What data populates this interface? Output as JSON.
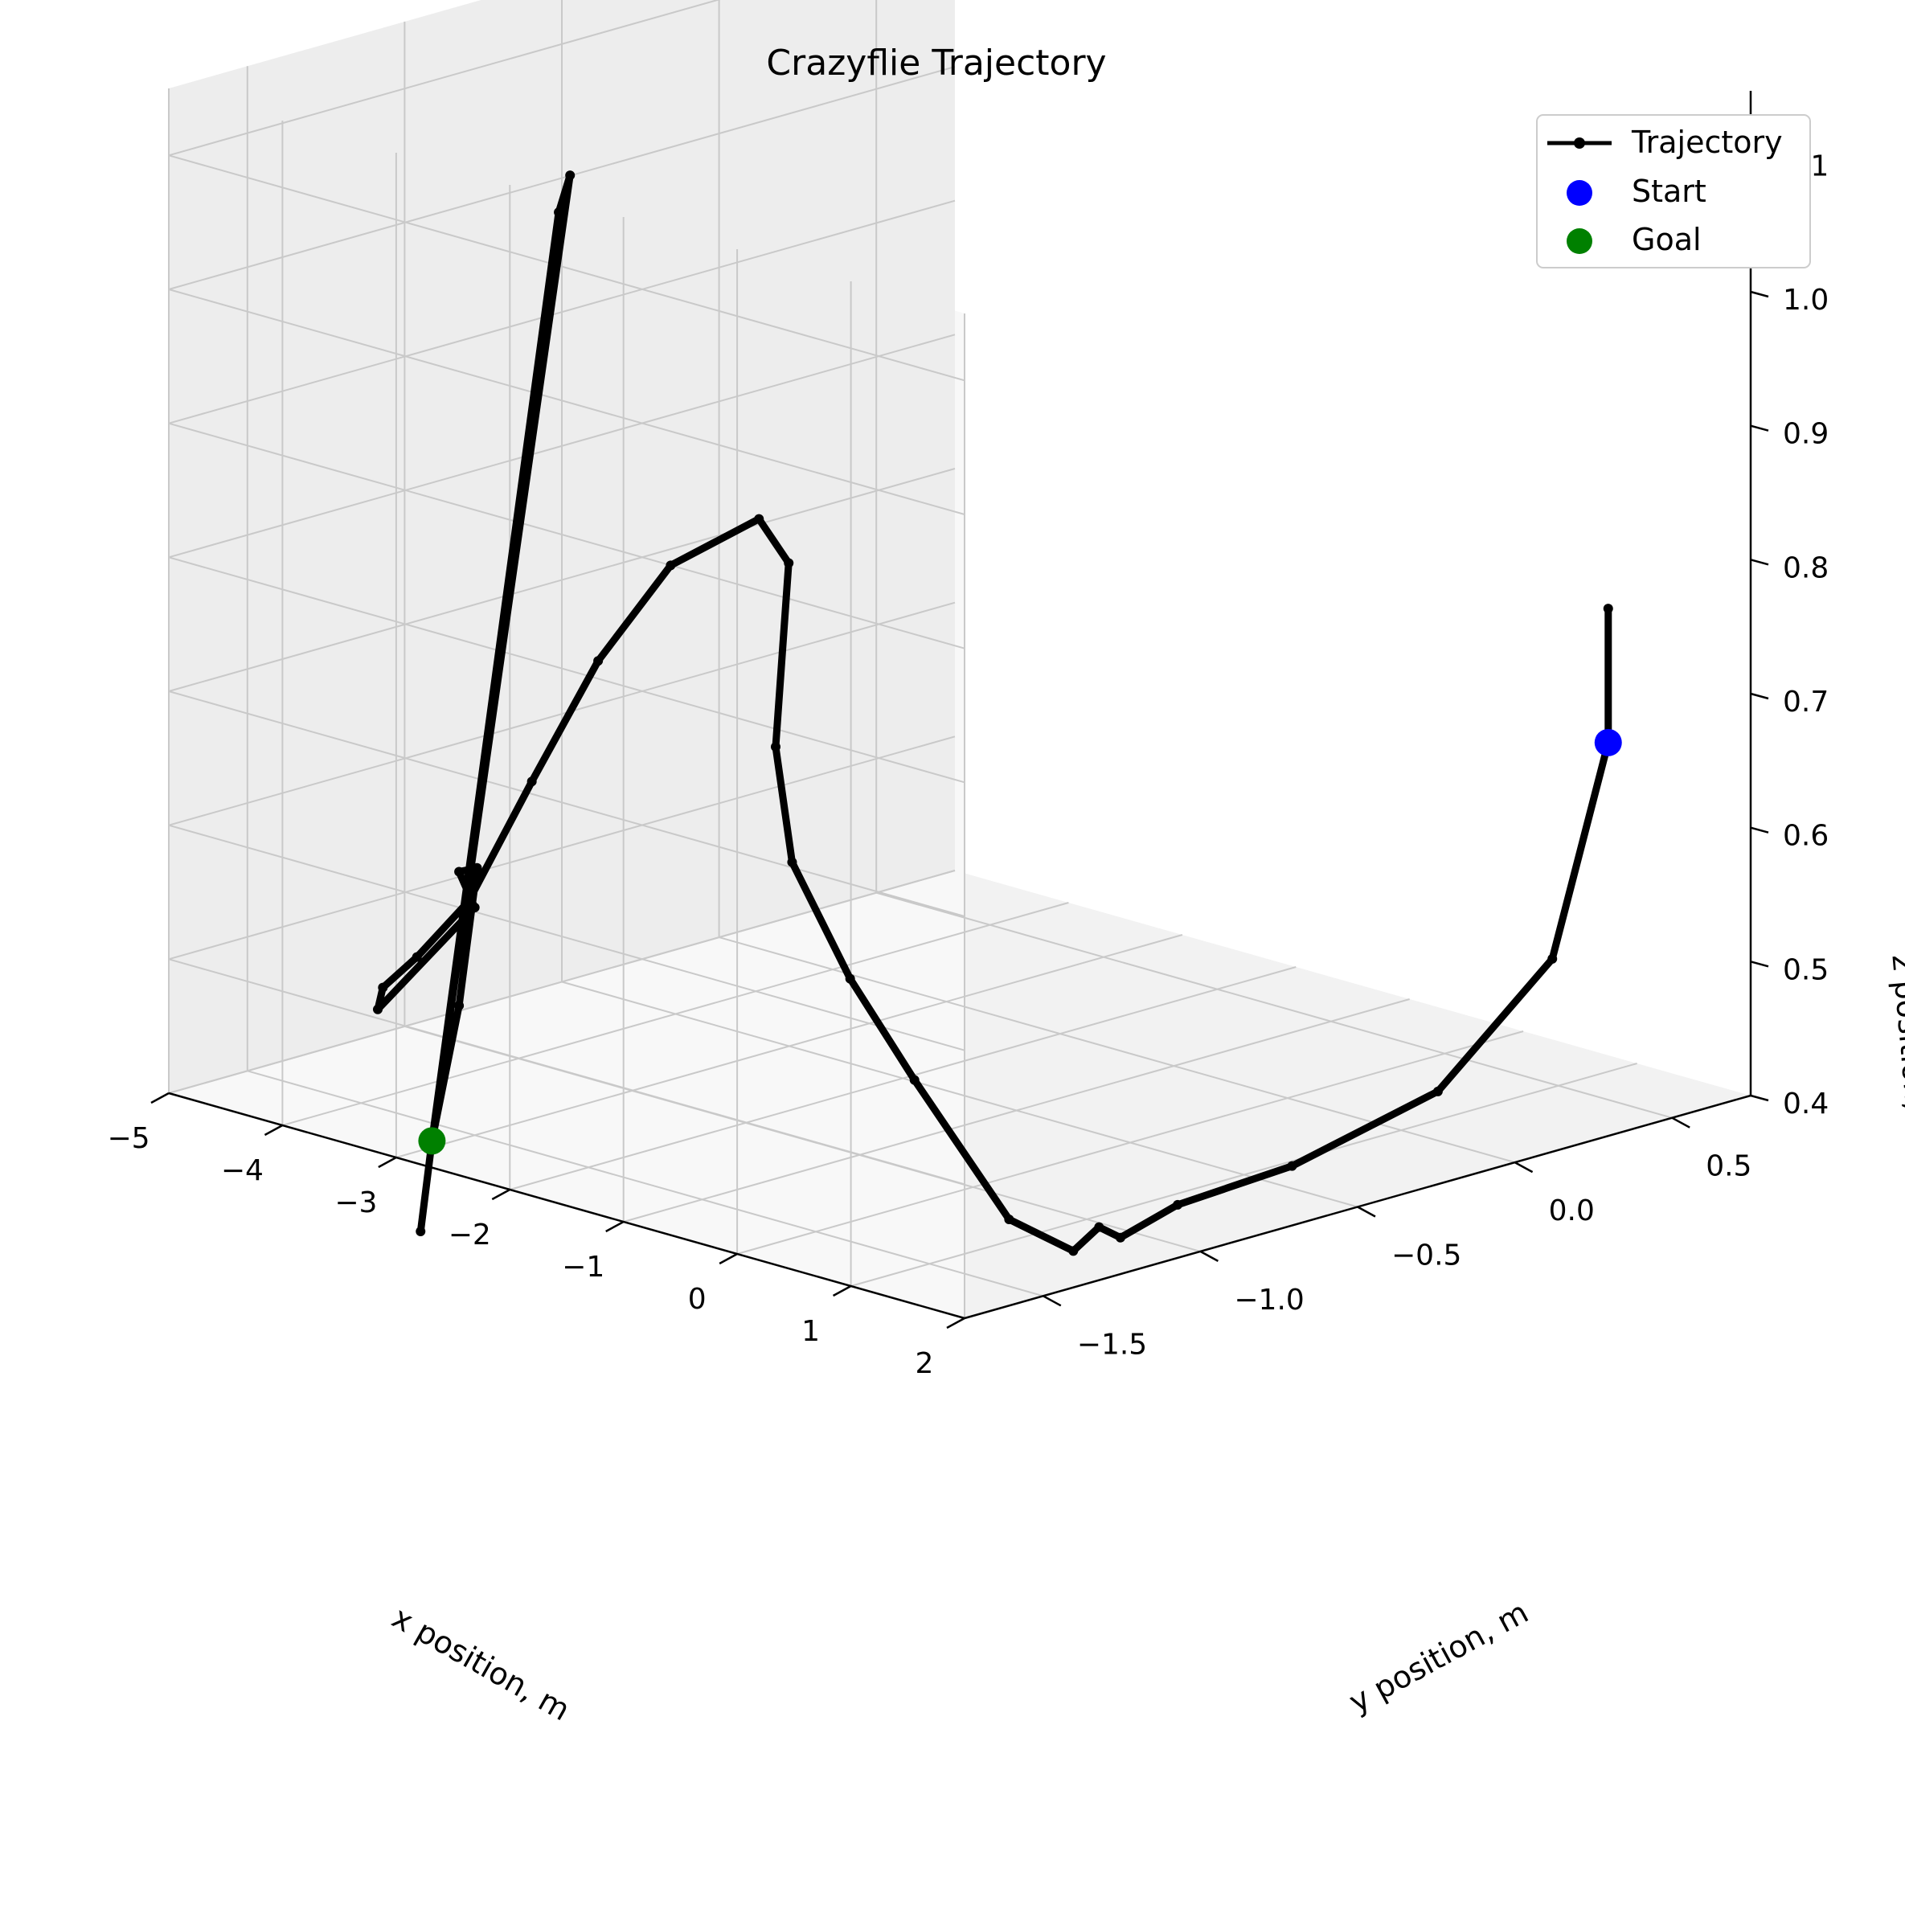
{
  "chart_data": {
    "type": "line3d",
    "title": "Crazyflie Trajectory",
    "xlabel": "x position, m",
    "ylabel": "y position, m",
    "zlabel": "z position, m",
    "xlim": [
      -5,
      2
    ],
    "ylim": [
      -1.75,
      0.75
    ],
    "zlim": [
      0.4,
      1.15
    ],
    "xticks": [
      "−5",
      "−4",
      "−3",
      "−2",
      "−1",
      "0",
      "1",
      "2"
    ],
    "yticks": [
      "−1.5",
      "−1.0",
      "−0.5",
      "0.0",
      "0.5"
    ],
    "zticks": [
      "0.4",
      "0.5",
      "0.6",
      "0.7",
      "0.8",
      "0.9",
      "1.0",
      "1.1"
    ],
    "grid": true,
    "legend_position": "upper right",
    "legend": [
      {
        "label": "Trajectory",
        "kind": "line-marker",
        "color": "#000000"
      },
      {
        "label": "Start",
        "kind": "dot",
        "color": "#0000ff"
      },
      {
        "label": "Goal",
        "kind": "dot",
        "color": "#008000"
      }
    ],
    "series": [
      {
        "name": "Trajectory",
        "color": "#000000",
        "points": [
          [
            1.3,
            0.55,
            0.76
          ],
          [
            1.3,
            0.55,
            0.66
          ],
          [
            1.5,
            0.3,
            0.52
          ],
          [
            1.6,
            -0.1,
            0.45
          ],
          [
            1.7,
            -0.6,
            0.43
          ],
          [
            1.8,
            -1.0,
            0.43
          ],
          [
            1.85,
            -1.2,
            0.42
          ],
          [
            1.8,
            -1.25,
            0.43
          ],
          [
            1.85,
            -1.35,
            0.42
          ],
          [
            1.7,
            -1.5,
            0.45
          ],
          [
            1.2,
            -1.62,
            0.55
          ],
          [
            0.8,
            -1.68,
            0.62
          ],
          [
            0.4,
            -1.72,
            0.7
          ],
          [
            0.2,
            -1.7,
            0.78
          ],
          [
            -0.1,
            -1.55,
            0.9
          ],
          [
            -0.5,
            -1.5,
            0.92
          ],
          [
            -1.0,
            -1.6,
            0.88
          ],
          [
            -1.5,
            -1.65,
            0.8
          ],
          [
            -2.0,
            -1.68,
            0.7
          ],
          [
            -2.5,
            -1.7,
            0.6
          ],
          [
            -2.9,
            -1.72,
            0.55
          ],
          [
            -3.2,
            -1.72,
            0.52
          ],
          [
            -3.3,
            -1.7,
            0.5
          ],
          [
            -3.0,
            -1.5,
            0.57
          ],
          [
            -3.0,
            -1.55,
            0.6
          ],
          [
            -2.98,
            -1.5,
            0.6
          ],
          [
            -3.0,
            -1.55,
            0.5
          ],
          [
            -3.1,
            -1.6,
            0.4
          ],
          [
            -2.4,
            -1.45,
            1.1
          ],
          [
            -2.3,
            -1.45,
            1.13
          ],
          [
            -3.1,
            -1.6,
            0.4
          ],
          [
            -3.2,
            -1.6,
            0.33
          ]
        ]
      }
    ],
    "start": {
      "label": "Start",
      "point": [
        1.3,
        0.55,
        0.66
      ],
      "color": "#0000ff"
    },
    "goal": {
      "label": "Goal",
      "point": [
        -3.1,
        -1.6,
        0.4
      ],
      "color": "#008000"
    }
  }
}
